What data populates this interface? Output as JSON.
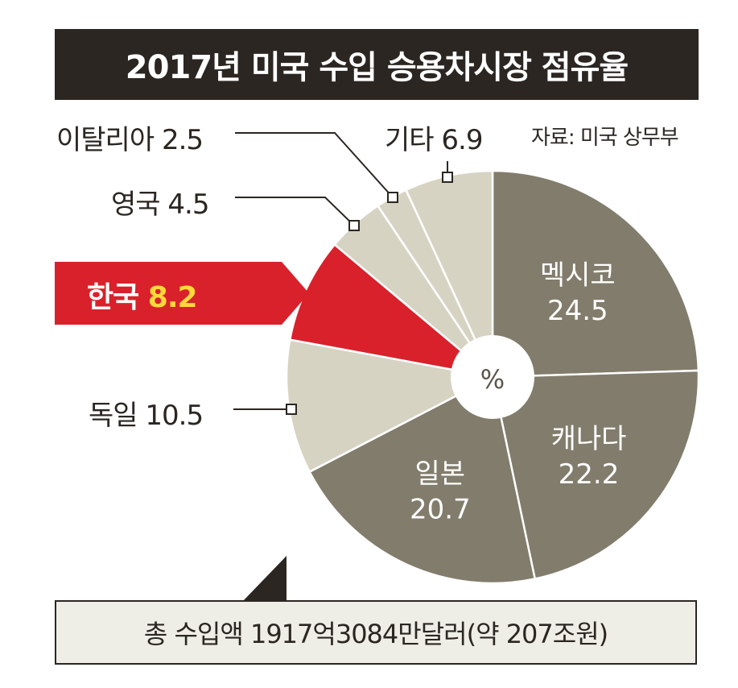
{
  "title": "2017년 미국 수입 승용차시장 점유율",
  "source": "자료: 미국 상무부",
  "unit_label": "%",
  "total": "총 수입액 1917억3084만달러(약 207조원)",
  "chart_data": {
    "type": "pie",
    "title": "2017년 미국 수입 승용차시장 점유율",
    "unit": "%",
    "slices": [
      {
        "label": "멕시코",
        "value": 24.5,
        "color": "#827c6c",
        "display": "24.5"
      },
      {
        "label": "캐나다",
        "value": 22.2,
        "color": "#827c6c",
        "display": "22.2"
      },
      {
        "label": "일본",
        "value": 20.7,
        "color": "#827c6c",
        "display": "20.7"
      },
      {
        "label": "독일",
        "value": 10.5,
        "color": "#d7d3c3",
        "display": "10.5"
      },
      {
        "label": "한국",
        "value": 8.2,
        "color": "#d9212b",
        "display": "8.2"
      },
      {
        "label": "영국",
        "value": 4.5,
        "color": "#d7d3c3",
        "display": "4.5"
      },
      {
        "label": "이탈리아",
        "value": 2.5,
        "color": "#d7d3c3",
        "display": "2.5"
      },
      {
        "label": "기타",
        "value": 6.9,
        "color": "#d7d3c3",
        "display": "6.9"
      }
    ]
  }
}
